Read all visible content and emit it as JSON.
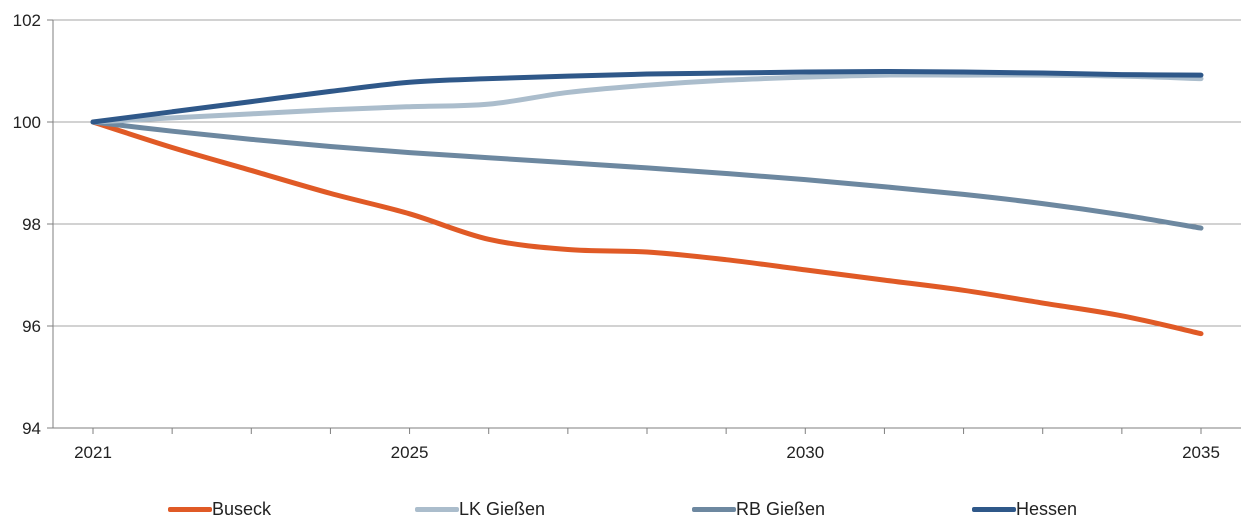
{
  "chart_data": {
    "type": "line",
    "title": "",
    "xlabel": "",
    "ylabel": "",
    "x": [
      2021,
      2022,
      2023,
      2024,
      2025,
      2026,
      2027,
      2028,
      2029,
      2030,
      2031,
      2032,
      2033,
      2034,
      2035
    ],
    "x_tick_labels": [
      "2021",
      "2025",
      "2030",
      "2035"
    ],
    "x_tick_values": [
      2021,
      2025,
      2030,
      2035
    ],
    "ylim": [
      94,
      102
    ],
    "y_ticks": [
      94,
      96,
      98,
      100,
      102
    ],
    "y_tick_labels": [
      "94",
      "96",
      "98",
      "100",
      "102"
    ],
    "grid": "horizontal",
    "legend_position": "bottom",
    "series": [
      {
        "name": "Buseck",
        "color": "#E05A26",
        "values": [
          100.0,
          99.5,
          99.05,
          98.6,
          98.2,
          97.7,
          97.5,
          97.45,
          97.3,
          97.1,
          96.9,
          96.7,
          96.45,
          96.2,
          95.85
        ]
      },
      {
        "name": "LK Gießen",
        "color": "#ABBDCC",
        "values": [
          100.0,
          100.08,
          100.16,
          100.24,
          100.3,
          100.35,
          100.58,
          100.72,
          100.82,
          100.88,
          100.92,
          100.92,
          100.92,
          100.9,
          100.85
        ]
      },
      {
        "name": "RB Gießen",
        "color": "#6D88A0",
        "values": [
          100.0,
          99.82,
          99.66,
          99.52,
          99.4,
          99.3,
          99.2,
          99.1,
          98.99,
          98.87,
          98.73,
          98.58,
          98.4,
          98.18,
          97.92
        ]
      },
      {
        "name": "Hessen",
        "color": "#2F5889",
        "values": [
          100.0,
          100.2,
          100.4,
          100.6,
          100.78,
          100.85,
          100.9,
          100.94,
          100.96,
          100.98,
          100.99,
          100.98,
          100.96,
          100.93,
          100.92
        ]
      }
    ]
  }
}
